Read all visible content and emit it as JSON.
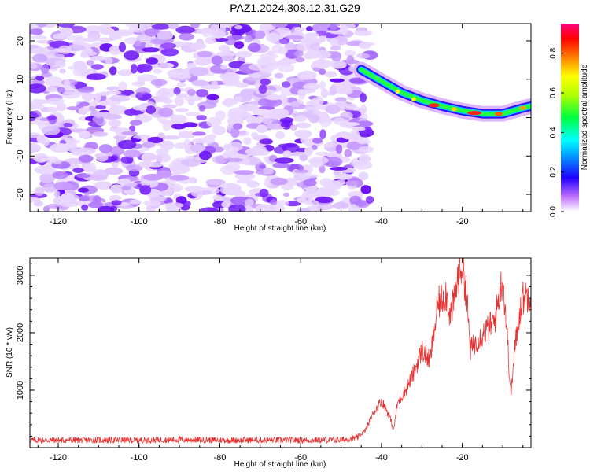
{
  "title": "PAZ1.2024.308.12.31.G29",
  "colors": {
    "snr_line": "#e83232",
    "speckle": "#8a2be2"
  },
  "chart_data": [
    {
      "type": "heatmap",
      "xlabel": "Height of straight line (km)",
      "ylabel": "Frequency (Hz)",
      "xlim": [
        -127,
        -3
      ],
      "ylim": [
        -24.5,
        24.5
      ],
      "xticks": [
        -120,
        -100,
        -80,
        -60,
        -40,
        -20
      ],
      "yticks": [
        -20,
        -10,
        0,
        10,
        20
      ],
      "colorbar": {
        "label": "Normalized spectral amplitude",
        "range": [
          0,
          0.95
        ],
        "ticks": [
          "0.0",
          "0.2",
          "0.4",
          "0.6",
          "0.8"
        ],
        "colormap": "rainbow (purple-blue-cyan-green-yellow-red-magenta)"
      },
      "signal_track": {
        "description": "bright ridge from top-left to right edge",
        "x": [
          -45,
          -40,
          -35,
          -30,
          -25,
          -20,
          -15,
          -10,
          -5,
          -3
        ],
        "frequency": [
          12.5,
          9.5,
          6.5,
          4.5,
          3,
          1.8,
          1,
          1,
          2.5,
          3
        ]
      },
      "noise_region_x": [
        -127,
        -44
      ]
    },
    {
      "type": "line",
      "xlabel": "Height of straight line (km)",
      "ylabel": "SNR (10 * v/v)",
      "xlim": [
        -127,
        -3
      ],
      "ylim": [
        0,
        3300
      ],
      "xticks": [
        -120,
        -100,
        -80,
        -60,
        -40,
        -20
      ],
      "yticks": [
        1000,
        2000,
        3000
      ],
      "series": [
        {
          "x": [
            -127,
            -120,
            -110,
            -100,
            -90,
            -80,
            -70,
            -60,
            -50,
            -46,
            -44,
            -42,
            -40,
            -38,
            -37,
            -36,
            -34,
            -32,
            -30,
            -28,
            -26,
            -24,
            -23,
            -22,
            -21,
            -20,
            -19,
            -18,
            -17,
            -16,
            -14,
            -12,
            -11,
            -10,
            -9,
            -8,
            -7,
            -6,
            -5,
            -3
          ],
          "y": [
            130,
            130,
            130,
            130,
            140,
            130,
            130,
            130,
            135,
            170,
            300,
            600,
            820,
            550,
            300,
            780,
            1000,
            1300,
            1700,
            1500,
            2500,
            2700,
            2300,
            2550,
            3000,
            3200,
            2700,
            1700,
            1800,
            1900,
            2050,
            2200,
            2600,
            2950,
            2100,
            900,
            1700,
            2300,
            2600,
            2700
          ]
        }
      ]
    }
  ]
}
